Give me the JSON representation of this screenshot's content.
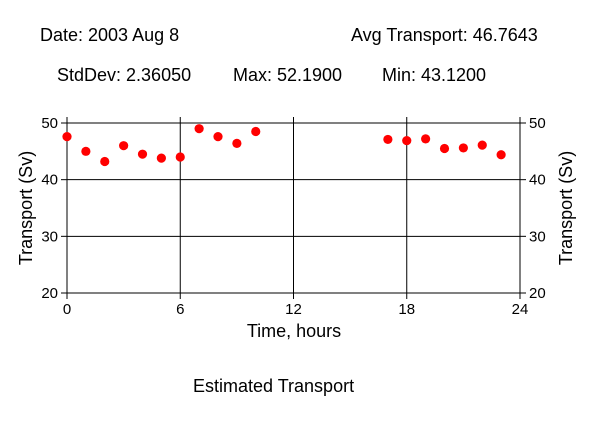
{
  "header": {
    "date": "Date: 2003 Aug 8",
    "avg": "Avg Transport: 46.7643",
    "stddev": "StdDev: 2.36050",
    "max": "Max: 52.1900",
    "min": "Min: 43.1200"
  },
  "footer": {
    "caption": "Estimated Transport"
  },
  "chart_data": {
    "type": "scatter",
    "xlabel": "Time, hours",
    "ylabel": "Transport (Sv)",
    "ylabel_right": "Transport (Sv)",
    "xlim": [
      0,
      24
    ],
    "ylim": [
      20,
      50
    ],
    "xticks": [
      0,
      6,
      12,
      18,
      24
    ],
    "yticks": [
      20,
      30,
      40,
      50
    ],
    "grid": true,
    "marker_color": "#ff0000",
    "series": [
      {
        "x": [
          0,
          1,
          2,
          3,
          4,
          5,
          6,
          7,
          8,
          9,
          10,
          17,
          18,
          19,
          20,
          21,
          22,
          23
        ],
        "y": [
          47.6,
          45.0,
          43.2,
          46.0,
          44.5,
          43.8,
          44.0,
          49.0,
          47.6,
          46.4,
          48.5,
          47.1,
          46.9,
          47.2,
          45.5,
          45.6,
          46.1,
          44.4
        ]
      }
    ]
  }
}
